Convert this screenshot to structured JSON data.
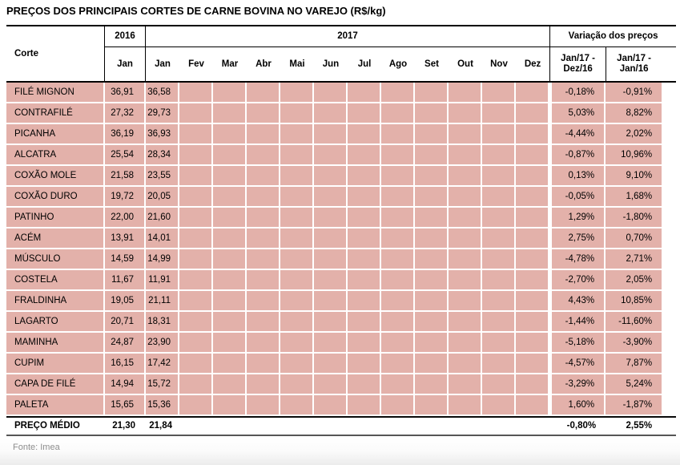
{
  "title": "PREÇOS DOS PRINCIPAIS CORTES DE CARNE BOVINA NO VAREJO (R$/kg)",
  "header": {
    "corte": "Corte",
    "year_2016": "2016",
    "year_2017": "2017",
    "variacao": "Variação dos preços",
    "month_2016": "Jan",
    "months_2017": [
      "Jan",
      "Fev",
      "Mar",
      "Abr",
      "Mai",
      "Jun",
      "Jul",
      "Ago",
      "Set",
      "Out",
      "Nov",
      "Dez"
    ],
    "var_col_1": "Jan/17 - Dez/16",
    "var_col_2": "Jan/17 - Jan/16"
  },
  "chart_data": {
    "type": "table",
    "unit": "R$/kg",
    "columns": [
      "Corte",
      "2016 Jan",
      "2017 Jan",
      "2017 Fev–Dez (vazio)",
      "Jan/17 - Dez/16",
      "Jan/17 - Jan/16"
    ],
    "rows": [
      {
        "corte": "FILÉ MIGNON",
        "jan_2016": "36,91",
        "jan_2017": "36,58",
        "var_jan17_dez16": "-0,18%",
        "var_jan17_jan16": "-0,91%"
      },
      {
        "corte": "CONTRAFILÉ",
        "jan_2016": "27,32",
        "jan_2017": "29,73",
        "var_jan17_dez16": "5,03%",
        "var_jan17_jan16": "8,82%"
      },
      {
        "corte": "PICANHA",
        "jan_2016": "36,19",
        "jan_2017": "36,93",
        "var_jan17_dez16": "-4,44%",
        "var_jan17_jan16": "2,02%"
      },
      {
        "corte": "ALCATRA",
        "jan_2016": "25,54",
        "jan_2017": "28,34",
        "var_jan17_dez16": "-0,87%",
        "var_jan17_jan16": "10,96%"
      },
      {
        "corte": "COXÃO MOLE",
        "jan_2016": "21,58",
        "jan_2017": "23,55",
        "var_jan17_dez16": "0,13%",
        "var_jan17_jan16": "9,10%"
      },
      {
        "corte": "COXÃO DURO",
        "jan_2016": "19,72",
        "jan_2017": "20,05",
        "var_jan17_dez16": "-0,05%",
        "var_jan17_jan16": "1,68%"
      },
      {
        "corte": "PATINHO",
        "jan_2016": "22,00",
        "jan_2017": "21,60",
        "var_jan17_dez16": "1,29%",
        "var_jan17_jan16": "-1,80%"
      },
      {
        "corte": "ACÉM",
        "jan_2016": "13,91",
        "jan_2017": "14,01",
        "var_jan17_dez16": "2,75%",
        "var_jan17_jan16": "0,70%"
      },
      {
        "corte": "MÚSCULO",
        "jan_2016": "14,59",
        "jan_2017": "14,99",
        "var_jan17_dez16": "-4,78%",
        "var_jan17_jan16": "2,71%"
      },
      {
        "corte": "COSTELA",
        "jan_2016": "11,67",
        "jan_2017": "11,91",
        "var_jan17_dez16": "-2,70%",
        "var_jan17_jan16": "2,05%"
      },
      {
        "corte": "FRALDINHA",
        "jan_2016": "19,05",
        "jan_2017": "21,11",
        "var_jan17_dez16": "4,43%",
        "var_jan17_jan16": "10,85%"
      },
      {
        "corte": "LAGARTO",
        "jan_2016": "20,71",
        "jan_2017": "18,31",
        "var_jan17_dez16": "-1,44%",
        "var_jan17_jan16": "-11,60%"
      },
      {
        "corte": "MAMINHA",
        "jan_2016": "24,87",
        "jan_2017": "23,90",
        "var_jan17_dez16": "-5,18%",
        "var_jan17_jan16": "-3,90%"
      },
      {
        "corte": "CUPIM",
        "jan_2016": "16,15",
        "jan_2017": "17,42",
        "var_jan17_dez16": "-4,57%",
        "var_jan17_jan16": "7,87%"
      },
      {
        "corte": "CAPA DE FILÉ",
        "jan_2016": "14,94",
        "jan_2017": "15,72",
        "var_jan17_dez16": "-3,29%",
        "var_jan17_jan16": "5,24%"
      },
      {
        "corte": "PALETA",
        "jan_2016": "15,65",
        "jan_2017": "15,36",
        "var_jan17_dez16": "1,60%",
        "var_jan17_jan16": "-1,87%"
      }
    ],
    "footer_row": {
      "corte": "PREÇO MÉDIO",
      "jan_2016": "21,30",
      "jan_2017": "21,84",
      "var_jan17_dez16": "-0,80%",
      "var_jan17_jan16": "2,55%"
    }
  },
  "source": "Fonte: Imea",
  "colors": {
    "row_pink": "#e3b1aa",
    "grid_white": "#ffffff",
    "border_black": "#000000",
    "source_gray": "#8d8d8d"
  }
}
